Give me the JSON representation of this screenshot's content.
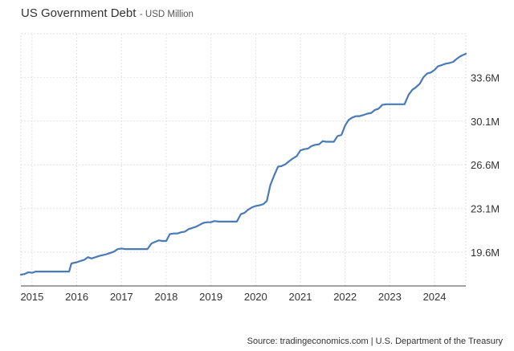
{
  "header": {
    "title": "US Government Debt",
    "subtitle": "- USD Million"
  },
  "source": "Source: tradingeconomics.com | U.S. Department of the Treasury",
  "chart_data": {
    "type": "line",
    "title": "US Government Debt",
    "subtitle": "- USD Million",
    "xlabel": "",
    "ylabel": "",
    "unit": "USD Million",
    "xlim": [
      2014.75,
      2024.7
    ],
    "ylim": [
      16.9,
      37.1
    ],
    "x_ticks": [
      2015,
      2016,
      2017,
      2018,
      2019,
      2020,
      2021,
      2022,
      2023,
      2024
    ],
    "x_tick_labels": [
      "2015",
      "2016",
      "2017",
      "2018",
      "2019",
      "2020",
      "2021",
      "2022",
      "2023",
      "2024"
    ],
    "y_ticks": [
      19.6,
      23.1,
      26.6,
      30.1,
      33.6
    ],
    "y_tick_labels": [
      "19.6M",
      "23.1M",
      "26.6M",
      "30.1M",
      "33.6M"
    ],
    "y_axis_position": "right",
    "grid": true,
    "line_color": "#4a7ab8",
    "series": [
      {
        "x": [
          2014.75,
          2014.83,
          2014.92,
          2015.0,
          2015.08,
          2015.17,
          2015.25,
          2015.33,
          2015.5,
          2015.67,
          2015.83,
          2015.88,
          2016.0,
          2016.08,
          2016.17,
          2016.25,
          2016.33,
          2016.5,
          2016.67,
          2016.83,
          2016.92,
          2017.0,
          2017.08,
          2017.17,
          2017.33,
          2017.5,
          2017.58,
          2017.67,
          2017.83,
          2017.92,
          2018.0,
          2018.08,
          2018.17,
          2018.25,
          2018.33,
          2018.42,
          2018.5,
          2018.67,
          2018.83,
          2018.92,
          2019.0,
          2019.08,
          2019.17,
          2019.25,
          2019.42,
          2019.58,
          2019.67,
          2019.75,
          2019.83,
          2019.92,
          2020.0,
          2020.08,
          2020.17,
          2020.25,
          2020.33,
          2020.42,
          2020.5,
          2020.58,
          2020.67,
          2020.75,
          2020.83,
          2020.92,
          2021.0,
          2021.08,
          2021.17,
          2021.25,
          2021.33,
          2021.42,
          2021.5,
          2021.58,
          2021.67,
          2021.75,
          2021.83,
          2021.92,
          2022.0,
          2022.08,
          2022.17,
          2022.25,
          2022.33,
          2022.42,
          2022.5,
          2022.58,
          2022.67,
          2022.75,
          2022.83,
          2022.92,
          2023.0,
          2023.08,
          2023.17,
          2023.33,
          2023.42,
          2023.5,
          2023.58,
          2023.67,
          2023.75,
          2023.83,
          2023.92,
          2024.0,
          2024.08,
          2024.17,
          2024.25,
          2024.33,
          2024.42,
          2024.5,
          2024.58,
          2024.7
        ],
        "y": [
          17.8,
          17.85,
          18.0,
          17.95,
          18.05,
          18.05,
          18.05,
          18.05,
          18.05,
          18.05,
          18.05,
          18.7,
          18.8,
          18.9,
          19.0,
          19.2,
          19.1,
          19.3,
          19.45,
          19.65,
          19.85,
          19.9,
          19.85,
          19.85,
          19.85,
          19.85,
          19.85,
          20.3,
          20.55,
          20.5,
          20.5,
          21.05,
          21.1,
          21.1,
          21.2,
          21.25,
          21.45,
          21.65,
          21.95,
          22.0,
          22.0,
          22.1,
          22.05,
          22.05,
          22.05,
          22.05,
          22.65,
          22.75,
          23.0,
          23.2,
          23.3,
          23.35,
          23.45,
          23.7,
          25.0,
          25.8,
          26.45,
          26.5,
          26.65,
          26.9,
          27.1,
          27.3,
          27.75,
          27.85,
          27.9,
          28.1,
          28.2,
          28.25,
          28.5,
          28.45,
          28.45,
          28.45,
          28.9,
          29.0,
          29.75,
          30.2,
          30.4,
          30.5,
          30.5,
          30.6,
          30.7,
          30.75,
          31.0,
          31.1,
          31.4,
          31.45,
          31.45,
          31.45,
          31.45,
          31.45,
          32.2,
          32.6,
          32.8,
          33.1,
          33.6,
          33.9,
          34.0,
          34.2,
          34.5,
          34.6,
          34.7,
          34.75,
          34.85,
          35.1,
          35.3,
          35.5
        ]
      }
    ]
  }
}
